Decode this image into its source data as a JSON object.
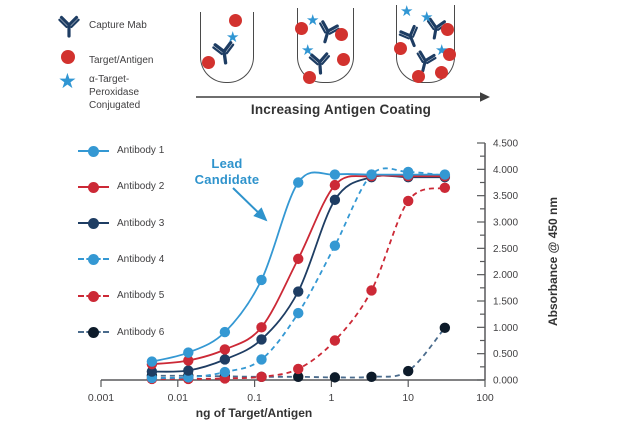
{
  "colors": {
    "light_blue": "#3498d3",
    "red": "#cc2936",
    "navy": "#1e3d63",
    "near_black": "#0d1b2a",
    "black_dash_line": "#4a6b8c",
    "antigen_red": "#d2322e",
    "annotation_blue": "#2e93cc",
    "axis": "#58595b",
    "text": "#414042"
  },
  "diagram": {
    "legend": [
      {
        "icon": "capture-mab-icon",
        "lines": [
          "Capture Mab"
        ]
      },
      {
        "icon": "target-antigen-icon",
        "lines": [
          "Target/Antigen"
        ]
      },
      {
        "icon": "conjugate-star-icon",
        "lines": [
          "α-Target-",
          "Peroxidase",
          "Conjugated"
        ]
      }
    ],
    "wells": [
      {
        "antibodies": 1,
        "conjugates": 1,
        "antigens": 2
      },
      {
        "antibodies": 2,
        "conjugates": 2,
        "antigens": 4
      },
      {
        "antibodies": 3,
        "conjugates": 3,
        "antigens": 5
      }
    ],
    "arrow_label": "Increasing Antigen Coating"
  },
  "annotation": {
    "lines": [
      "Lead",
      "Candidate"
    ]
  },
  "chart_data": {
    "type": "line",
    "xscale": "log",
    "x": [
      0.0046,
      0.0137,
      0.041,
      0.123,
      0.37,
      1.11,
      3.33,
      10,
      30
    ],
    "xlim": [
      0.001,
      100
    ],
    "ylim": [
      0,
      4.5
    ],
    "xtick_labels": [
      "0.001",
      "0.01",
      "0.1",
      "1",
      "10",
      "100"
    ],
    "ytick_step": 0.5,
    "ytick_minor_step": 0.25,
    "xlabel": "ng of Target/Antigen",
    "ylabel": "Absorbance @ 450 nm",
    "grid": false,
    "legend_position": "left",
    "series": [
      {
        "name": "Antibody 1",
        "color": "#3498d3",
        "dashed": false,
        "values": [
          0.35,
          0.52,
          0.91,
          1.9,
          3.75,
          3.9,
          3.9,
          3.9,
          3.9
        ]
      },
      {
        "name": "Antibody 2",
        "color": "#cc2936",
        "dashed": false,
        "values": [
          0.3,
          0.37,
          0.58,
          1.0,
          2.3,
          3.7,
          3.87,
          3.87,
          3.87
        ]
      },
      {
        "name": "Antibody 3",
        "color": "#1e3d63",
        "dashed": false,
        "values": [
          0.16,
          0.18,
          0.39,
          0.77,
          1.68,
          3.42,
          3.85,
          3.85,
          3.85
        ]
      },
      {
        "name": "Antibody 4",
        "color": "#3498d3",
        "dashed": true,
        "values": [
          0.04,
          0.05,
          0.15,
          0.39,
          1.27,
          2.55,
          3.9,
          3.95,
          3.88
        ]
      },
      {
        "name": "Antibody 5",
        "color": "#cc2936",
        "dashed": true,
        "values": [
          0.02,
          0.02,
          0.03,
          0.06,
          0.21,
          0.75,
          1.7,
          3.4,
          3.65
        ]
      },
      {
        "name": "Antibody 6",
        "color": "#0d1b2a",
        "line_color": "#4a6b8c",
        "dashed": true,
        "values": [
          0.08,
          0.08,
          0.07,
          0.06,
          0.06,
          0.05,
          0.06,
          0.17,
          0.99
        ]
      }
    ],
    "annotation": {
      "text": "Lead Candidate",
      "target_series": "Antibody 1"
    }
  }
}
